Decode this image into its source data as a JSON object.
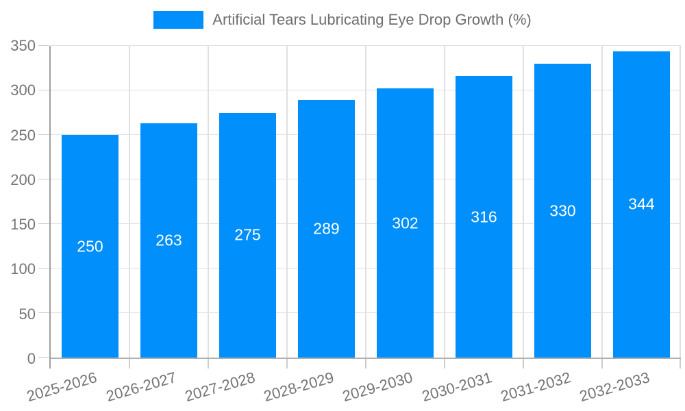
{
  "chart_data": {
    "type": "bar",
    "title": "Artificial Tears Lubricating Eye Drop Growth (%)",
    "legend": {
      "label": "Artificial Tears Lubricating Eye Drop Growth (%)",
      "position": "top"
    },
    "categories": [
      "2025-2026",
      "2026-2027",
      "2027-2028",
      "2028-2029",
      "2029-2030",
      "2030-2031",
      "2031-2032",
      "2032-2033"
    ],
    "series": [
      {
        "name": "Artificial Tears Lubricating Eye Drop Growth (%)",
        "values": [
          250,
          263,
          275,
          289,
          302,
          316,
          330,
          344
        ]
      }
    ],
    "value_labels": [
      "250",
      "263",
      "275",
      "289",
      "302",
      "316",
      "330",
      "344"
    ],
    "xlabel": "",
    "ylabel": "",
    "ylim": [
      0,
      350
    ],
    "yticks": [
      0,
      50,
      100,
      150,
      200,
      250,
      300,
      350
    ],
    "grid": true,
    "x_label_rotation_deg": -16,
    "colors": {
      "bar": "#008FFB",
      "value_label": "#ffffff",
      "grid": "#e0e0e0",
      "axis": "#9e9e9e",
      "tick": "#cccccc",
      "tick_label": "#757575",
      "legend_label": "#6e6e6e",
      "background": "#ffffff"
    }
  }
}
